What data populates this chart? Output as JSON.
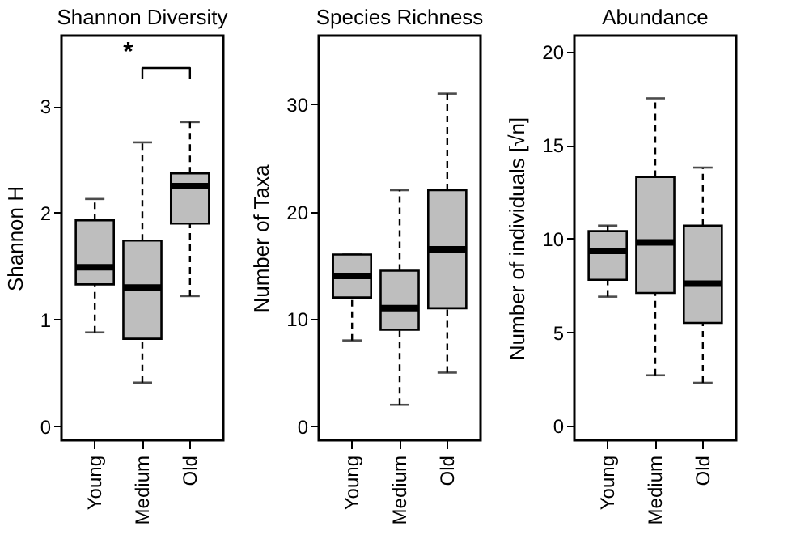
{
  "chart_data": [
    {
      "type": "box",
      "title": "Shannon Diversity",
      "ylabel": "Shannon H",
      "categories": [
        "Young",
        "Medium",
        "Old"
      ],
      "boxes": [
        {
          "low": 0.88,
          "q1": 1.33,
          "median": 1.49,
          "q3": 1.93,
          "high": 2.13
        },
        {
          "low": 0.41,
          "q1": 0.82,
          "median": 1.3,
          "q3": 1.74,
          "high": 2.66
        },
        {
          "low": 1.22,
          "q1": 1.9,
          "median": 2.25,
          "q3": 2.37,
          "high": 2.85
        }
      ],
      "ylim": [
        -0.13,
        3.66
      ],
      "yticks": [
        0,
        1,
        2,
        3
      ],
      "grid": false,
      "annotations": [
        "*"
      ]
    },
    {
      "type": "box",
      "title": "Species Richness",
      "ylabel": "Number of Taxa",
      "categories": [
        "Young",
        "Medium",
        "Old"
      ],
      "boxes": [
        {
          "low": 8,
          "q1": 12,
          "median": 14,
          "q3": 16,
          "high": 16
        },
        {
          "low": 2,
          "q1": 9,
          "median": 11,
          "q3": 14.5,
          "high": 22
        },
        {
          "low": 5,
          "q1": 11,
          "median": 16.5,
          "q3": 22,
          "high": 31
        }
      ],
      "ylim": [
        -1.3,
        36.4
      ],
      "yticks": [
        0,
        10,
        20,
        30
      ],
      "grid": false
    },
    {
      "type": "box",
      "title": "Abundance",
      "ylabel": "Number of individuals  [√n]",
      "categories": [
        "Young",
        "Medium",
        "Old"
      ],
      "boxes": [
        {
          "low": 6.9,
          "q1": 7.8,
          "median": 9.35,
          "q3": 10.4,
          "high": 10.7
        },
        {
          "low": 2.7,
          "q1": 7.1,
          "median": 9.8,
          "q3": 13.3,
          "high": 17.5
        },
        {
          "low": 2.3,
          "q1": 5.5,
          "median": 7.6,
          "q3": 10.7,
          "high": 13.8
        }
      ],
      "ylim": [
        -0.77,
        20.85
      ],
      "yticks": [
        0,
        5,
        10,
        15,
        20
      ],
      "grid": false
    }
  ]
}
